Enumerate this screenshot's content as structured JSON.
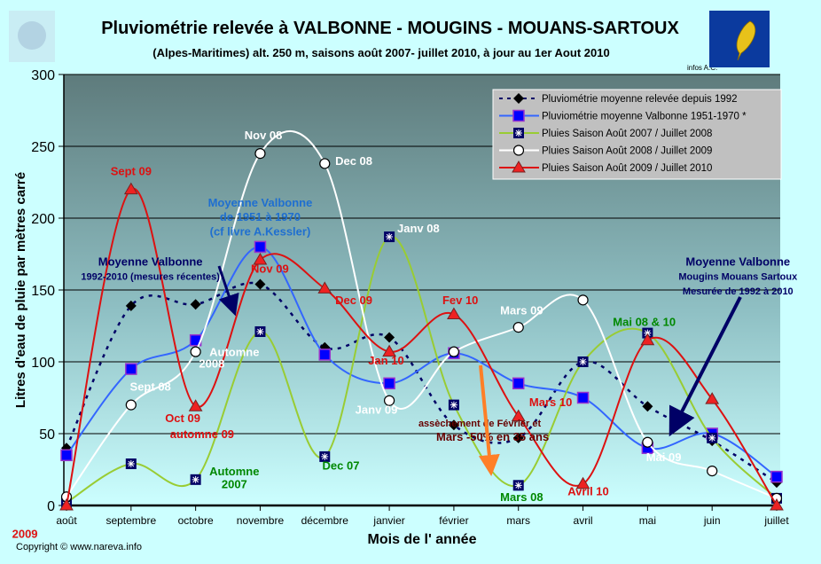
{
  "header": {
    "title": "Pluviométrie relevée à VALBONNE - MOUGINS - MOUANS-SARTOUX",
    "subtitle": "(Alpes-Maritimes)  alt. 250 m, saisons août 2007- juillet 2010,  à jour au 1er Aout 2010",
    "credit": "infos A.C.",
    "logo_icon": "feather-icon"
  },
  "footer": {
    "copyright": "Copyright © www.nareva.info"
  },
  "chart_data": {
    "type": "line",
    "title": "Pluviométrie relevée à VALBONNE - MOUGINS - MOUANS-SARTOUX",
    "xlabel": "Mois de l' année",
    "ylabel": "Litres d'eau de pluie par mètres carré",
    "ylim": [
      0,
      300
    ],
    "yticks": [
      "0",
      "50",
      "100",
      "150",
      "200",
      "250",
      "300"
    ],
    "grid": true,
    "legend_position": "top-right",
    "categories": [
      "août",
      "septembre",
      "octobre",
      "novembre",
      "décembre",
      "janvier",
      "février",
      "mars",
      "avril",
      "mai",
      "juin",
      "juillet"
    ],
    "series": [
      {
        "name": "Pluviométrie moyenne relevée depuis 1992",
        "color": "#000066",
        "marker": "diamond",
        "dash": true,
        "values": [
          40,
          139,
          140,
          154,
          110,
          117,
          56,
          47,
          100,
          69,
          45,
          16
        ]
      },
      {
        "name": "Pluviométrie  moyenne Valbonne 1951-1970 *",
        "color": "#3366ff",
        "marker": "square",
        "dash": false,
        "values": [
          35,
          95,
          115,
          180,
          105,
          85,
          106,
          85,
          75,
          40,
          50,
          20
        ]
      },
      {
        "name": "Pluies Saison Août 2007 / Juillet 2008",
        "color": "#99cc33",
        "marker": "star-square",
        "dash": false,
        "values": [
          2,
          29,
          18,
          121,
          34,
          187,
          70,
          14,
          100,
          120,
          47,
          5
        ]
      },
      {
        "name": "Pluies Saison Août 2008 / Juillet 2009",
        "color": "#ffffff",
        "marker": "circle",
        "dash": false,
        "values": [
          6,
          70,
          107,
          245,
          238,
          73,
          107,
          124,
          143,
          44,
          24,
          5
        ]
      },
      {
        "name": "Pluies Saison Août 2009 / Juillet 2010",
        "color": "#dd1111",
        "marker": "triangle",
        "dash": false,
        "values": [
          0,
          220,
          69,
          171,
          151,
          107,
          133,
          62,
          15,
          115,
          74,
          0
        ]
      }
    ],
    "annotations": [
      {
        "text": "Sept 09",
        "color": "#dd1111",
        "at": [
          1,
          230
        ]
      },
      {
        "text": "Nov 08",
        "color": "#ffffff",
        "at": [
          3.05,
          255
        ]
      },
      {
        "text": "Dec 08",
        "color": "#ffffff",
        "at": [
          4.45,
          237
        ]
      },
      {
        "text": "Moyenne Valbonne",
        "color": "#1f6fd0",
        "at": [
          3.0,
          208
        ]
      },
      {
        "text": "de 1951 à 1970",
        "color": "#1f6fd0",
        "at": [
          3.0,
          198
        ]
      },
      {
        "text": "(cf livre A.Kessler)",
        "color": "#1f6fd0",
        "at": [
          3.0,
          188
        ]
      },
      {
        "text": "Janv 08",
        "color": "#ffffff",
        "at": [
          5.45,
          190
        ]
      },
      {
        "text": "Moyenne Valbonne",
        "color": "#000066",
        "at": [
          1.3,
          167
        ]
      },
      {
        "text": "1992-2010 (mesures récentes)",
        "color": "#000066",
        "at": [
          1.3,
          157
        ]
      },
      {
        "text": "Nov 09",
        "color": "#dd1111",
        "at": [
          3.15,
          162
        ]
      },
      {
        "text": "Dec 09",
        "color": "#dd1111",
        "at": [
          4.45,
          140
        ]
      },
      {
        "text": "Fev 10",
        "color": "#dd1111",
        "at": [
          6.1,
          140
        ]
      },
      {
        "text": "Mars 09",
        "color": "#ffffff",
        "at": [
          7.05,
          133
        ]
      },
      {
        "text": "Moyenne Valbonne",
        "color": "#000066",
        "at": [
          10.4,
          167
        ]
      },
      {
        "text": "Mougins Mouans Sartoux",
        "color": "#000066",
        "at": [
          10.4,
          157
        ]
      },
      {
        "text": "Mesurée de 1992 à 2010",
        "color": "#000066",
        "at": [
          10.4,
          147
        ]
      },
      {
        "text": "Mai 08 &  10",
        "color": "#008800",
        "at": [
          8.95,
          125
        ]
      },
      {
        "text": "Automne",
        "color": "#ffffff",
        "at": [
          2.6,
          104
        ]
      },
      {
        "text": "2008",
        "color": "#ffffff",
        "at": [
          2.25,
          96
        ]
      },
      {
        "text": "Jan 10",
        "color": "#dd1111",
        "at": [
          4.95,
          98
        ]
      },
      {
        "text": "Sept 08",
        "color": "#ffffff",
        "at": [
          1.3,
          80
        ]
      },
      {
        "text": "Janv 09",
        "color": "#ffffff",
        "at": [
          4.8,
          64
        ]
      },
      {
        "text": "Mars 10",
        "color": "#dd1111",
        "at": [
          7.5,
          66
        ]
      },
      {
        "text": "assèchement de Février et",
        "color": "#660000",
        "at": [
          6.4,
          55
        ]
      },
      {
        "text": "Mars -50% en 35 ans",
        "color": "#660000",
        "at": [
          6.6,
          45
        ]
      },
      {
        "text": "Oct 09",
        "color": "#dd1111",
        "at": [
          1.8,
          58
        ]
      },
      {
        "text": "automne 09",
        "color": "#dd1111",
        "at": [
          2.1,
          47
        ]
      },
      {
        "text": "Mai 09",
        "color": "#ffffff",
        "at": [
          9.25,
          31
        ]
      },
      {
        "text": "Automne",
        "color": "#008800",
        "at": [
          2.6,
          21
        ]
      },
      {
        "text": "2007",
        "color": "#008800",
        "at": [
          2.6,
          12
        ]
      },
      {
        "text": "Dec 07",
        "color": "#008800",
        "at": [
          4.25,
          25
        ]
      },
      {
        "text": "Mars 08",
        "color": "#008800",
        "at": [
          7.05,
          3
        ]
      },
      {
        "text": "Avril 10",
        "color": "#dd1111",
        "at": [
          8.0,
          7
        ]
      },
      {
        "text": "2009",
        "color": "#dd1111",
        "at": [
          -0.15,
          -9
        ]
      }
    ]
  }
}
